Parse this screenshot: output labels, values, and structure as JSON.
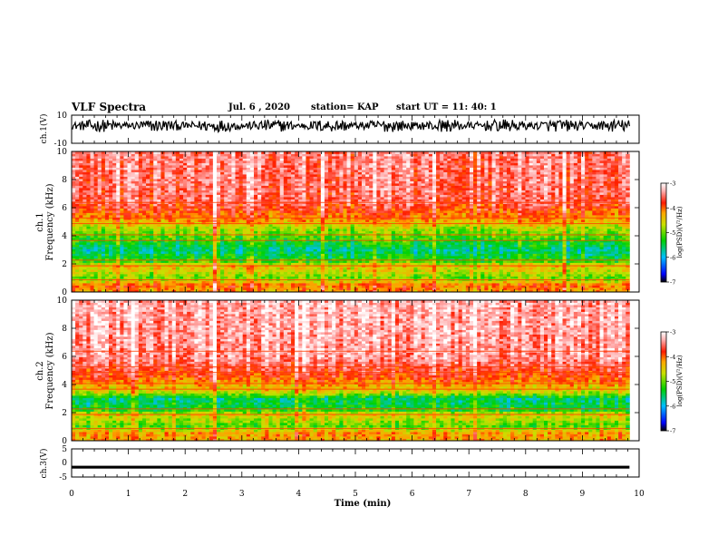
{
  "header": {
    "title": "VLF Spectra",
    "date": "Jul. 6 , 2020",
    "station": "station= KAP",
    "start": "start UT = 11: 40: 1"
  },
  "chart_data": [
    {
      "type": "line",
      "name": "ch1-waveform",
      "ylabel": "ch.1(V)",
      "ylim": [
        -10,
        10
      ],
      "yticks": [
        "10",
        "-10"
      ],
      "xlim": [
        0,
        10
      ],
      "data_extent_min": 9.83,
      "y_baseline": 2.5,
      "y_fluctuation": 4.5
    },
    {
      "type": "heatmap",
      "name": "ch1-spectrogram",
      "ylabel": "ch.1 Frequency (kHz)",
      "ylabel_line1": "ch.1",
      "ylabel_line2": "Frequency (kHz)",
      "ylim": [
        0,
        10
      ],
      "yticks": [
        "0",
        "2",
        "4",
        "6",
        "8",
        "10"
      ],
      "xlim": [
        0,
        10
      ],
      "data_extent_min": 9.83,
      "colorbar": {
        "label": "log(PSD)(V²/Hz)",
        "range": [
          -7,
          -3
        ],
        "ticks": [
          "-3",
          "-4",
          "-5",
          "-6",
          "-7"
        ]
      },
      "level_profile_by_freq_khz": [
        {
          "f": 0.0,
          "level": -4.3
        },
        {
          "f": 0.5,
          "level": -4.0
        },
        {
          "f": 1.0,
          "level": -5.0
        },
        {
          "f": 1.9,
          "level": -4.4
        },
        {
          "f": 2.2,
          "level": -5.2
        },
        {
          "f": 3.0,
          "level": -5.7
        },
        {
          "f": 3.6,
          "level": -5.3
        },
        {
          "f": 4.5,
          "level": -4.8
        },
        {
          "f": 5.3,
          "level": -4.1
        },
        {
          "f": 6.5,
          "level": -3.6
        },
        {
          "f": 10.0,
          "level": -3.5
        }
      ],
      "broadband_event_min": 2.5
    },
    {
      "type": "heatmap",
      "name": "ch2-spectrogram",
      "ylabel": "ch.2 Frequency (kHz)",
      "ylabel_line1": "ch.2",
      "ylabel_line2": "Frequency (kHz)",
      "ylim": [
        0,
        10
      ],
      "yticks": [
        "0",
        "2",
        "4",
        "6",
        "8",
        "10"
      ],
      "xlim": [
        0,
        10
      ],
      "data_extent_min": 9.83,
      "colorbar": {
        "label": "log(PSD)(V²/Hz)",
        "range": [
          -7,
          -3
        ],
        "ticks": [
          "-3",
          "-4",
          "-5",
          "-6",
          "-7"
        ]
      },
      "level_profile_by_freq_khz": [
        {
          "f": 0.0,
          "level": -4.3
        },
        {
          "f": 0.6,
          "level": -4.2
        },
        {
          "f": 1.0,
          "level": -5.1
        },
        {
          "f": 1.9,
          "level": -4.5
        },
        {
          "f": 2.2,
          "level": -5.3
        },
        {
          "f": 3.0,
          "level": -5.6
        },
        {
          "f": 3.5,
          "level": -4.6
        },
        {
          "f": 4.5,
          "level": -3.9
        },
        {
          "f": 6.0,
          "level": -3.4
        },
        {
          "f": 10.0,
          "level": -3.3
        }
      ],
      "broadband_event_min": 2.5
    },
    {
      "type": "line",
      "name": "ch3-waveform",
      "ylabel": "ch.3(V)",
      "ylim": [
        -5,
        5
      ],
      "yticks": [
        "5",
        "0",
        "-5"
      ],
      "xlim": [
        0,
        10
      ],
      "data_extent_min": 9.83,
      "y_baseline": -1.5,
      "y_band_half_width": 0.5
    }
  ],
  "x_axis": {
    "label": "Time (min)",
    "ticks": [
      "0",
      "1",
      "2",
      "3",
      "4",
      "5",
      "6",
      "7",
      "8",
      "9",
      "10"
    ],
    "range": [
      0,
      10
    ]
  }
}
